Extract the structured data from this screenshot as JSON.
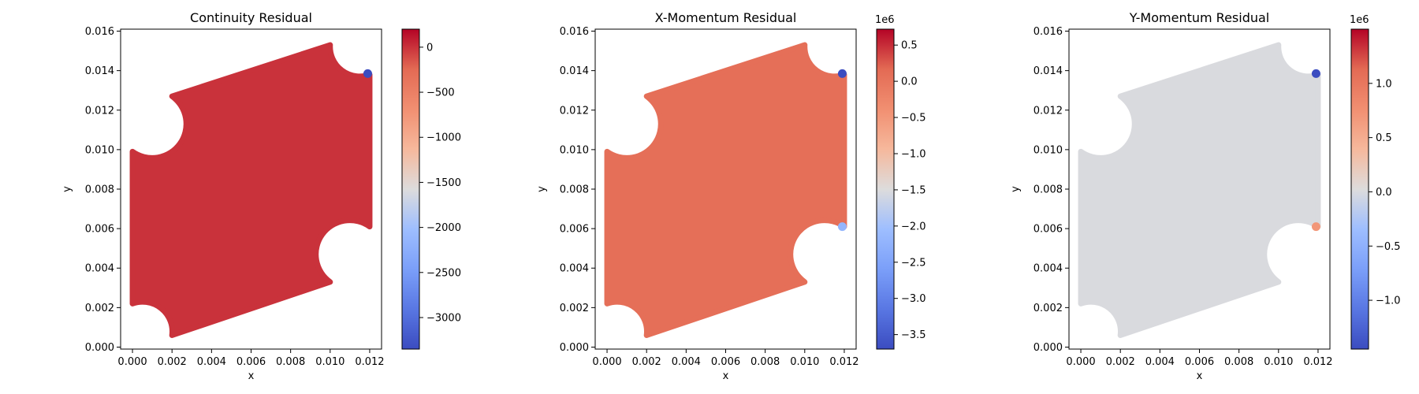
{
  "chart_data": [
    {
      "type": "scatter",
      "title": "Continuity Residual",
      "xlabel": "x",
      "ylabel": "y",
      "xlim": [
        -0.0006,
        0.0126
      ],
      "ylim": [
        -0.0001,
        0.0161
      ],
      "xticks": [
        "0.000",
        "0.002",
        "0.004",
        "0.006",
        "0.008",
        "0.010",
        "0.012"
      ],
      "yticks": [
        "0.000",
        "0.002",
        "0.004",
        "0.006",
        "0.008",
        "0.010",
        "0.012",
        "0.014",
        "0.016"
      ],
      "colorbar": {
        "colormap": "coolwarm",
        "min": -3350,
        "max": 200,
        "ticks": [
          "0",
          "−500",
          "−1000",
          "−1500",
          "−2000",
          "−2500",
          "−3000"
        ],
        "tick_values": [
          0,
          -500,
          -1000,
          -1500,
          -2000,
          -2500,
          -3000
        ],
        "offset_label": ""
      },
      "field_value": 0,
      "hotspots": [
        {
          "x": 0.0119,
          "y": 0.01385,
          "value": -3350
        }
      ]
    },
    {
      "type": "scatter",
      "title": "X-Momentum Residual",
      "xlabel": "x",
      "ylabel": "y",
      "xlim": [
        -0.0006,
        0.0126
      ],
      "ylim": [
        -0.0001,
        0.0161
      ],
      "xticks": [
        "0.000",
        "0.002",
        "0.004",
        "0.006",
        "0.008",
        "0.010",
        "0.012"
      ],
      "yticks": [
        "0.000",
        "0.002",
        "0.004",
        "0.006",
        "0.008",
        "0.010",
        "0.012",
        "0.014",
        "0.016"
      ],
      "colorbar": {
        "colormap": "coolwarm",
        "min": -3.7,
        "max": 0.72,
        "ticks": [
          "0.5",
          "0.0",
          "−0.5",
          "−1.0",
          "−1.5",
          "−2.0",
          "−2.5",
          "−3.0",
          "−3.5"
        ],
        "tick_values": [
          0.5,
          0,
          -0.5,
          -1.0,
          -1.5,
          -2.0,
          -2.5,
          -3.0,
          -3.5
        ],
        "offset_label": "1e6"
      },
      "field_value": 0.1,
      "hotspots": [
        {
          "x": 0.0119,
          "y": 0.01385,
          "value": -3.7
        },
        {
          "x": 0.0119,
          "y": 0.0061,
          "value": -2.2
        }
      ]
    },
    {
      "type": "scatter",
      "title": "Y-Momentum Residual",
      "xlabel": "x",
      "ylabel": "y",
      "xlim": [
        -0.0006,
        0.0126
      ],
      "ylim": [
        -0.0001,
        0.0161
      ],
      "xticks": [
        "0.000",
        "0.002",
        "0.004",
        "0.006",
        "0.008",
        "0.010",
        "0.012"
      ],
      "yticks": [
        "0.000",
        "0.002",
        "0.004",
        "0.006",
        "0.008",
        "0.010",
        "0.012",
        "0.014",
        "0.016"
      ],
      "colorbar": {
        "colormap": "coolwarm",
        "min": -1.45,
        "max": 1.5,
        "ticks": [
          "1.0",
          "0.5",
          "0.0",
          "−0.5",
          "−1.0"
        ],
        "tick_values": [
          1.0,
          0.5,
          0,
          -0.5,
          -1.0
        ],
        "offset_label": "1e6"
      },
      "field_value": 0,
      "hotspots": [
        {
          "x": 0.0119,
          "y": 0.01385,
          "value": -1.45
        },
        {
          "x": 0.0119,
          "y": 0.0061,
          "value": 0.7
        }
      ]
    }
  ]
}
